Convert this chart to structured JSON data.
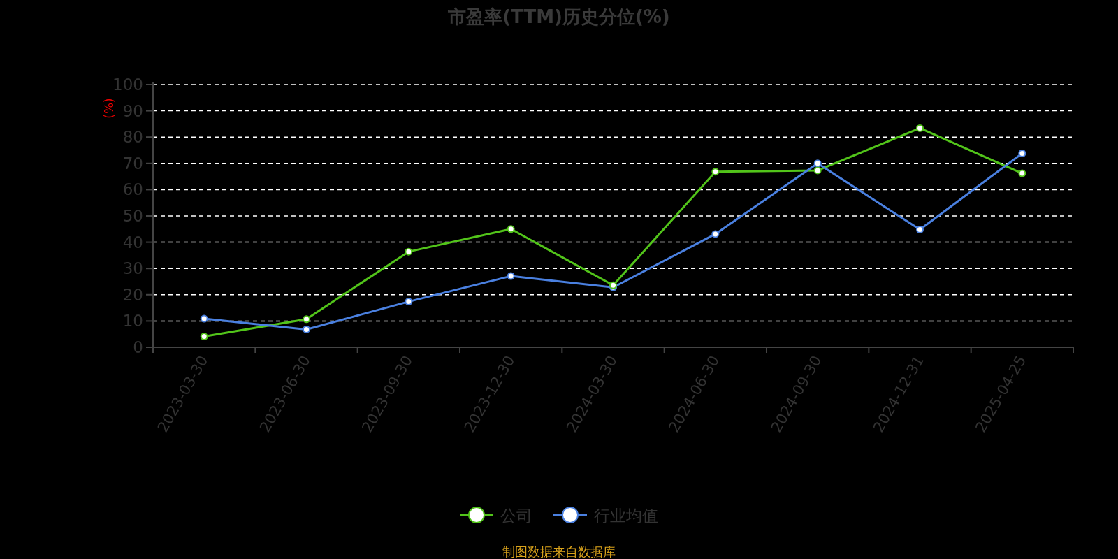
{
  "chart_data": {
    "type": "line",
    "title": "市盈率(TTM)历史分位(%)",
    "ylabel": "(%)",
    "categories": [
      "2023-03-30",
      "2023-06-30",
      "2023-09-30",
      "2023-12-30",
      "2024-03-30",
      "2024-06-30",
      "2024-09-30",
      "2024-12-31",
      "2025-04-25"
    ],
    "series": [
      {
        "name": "公司",
        "color": "#52c41a",
        "values": [
          4.1,
          10.7,
          36.4,
          45.0,
          23.6,
          66.8,
          67.3,
          83.4,
          66.2
        ]
      },
      {
        "name": "行业均值",
        "color": "#4a80e0",
        "values": [
          10.9,
          6.8,
          17.4,
          27.1,
          22.8,
          43.1,
          70.0,
          44.8,
          73.8
        ]
      }
    ],
    "ylim": [
      0,
      100
    ],
    "yticks": [
      0,
      10,
      20,
      30,
      40,
      50,
      60,
      70,
      80,
      90,
      100
    ],
    "grid": "y",
    "legend": "bottom",
    "marker": "circle",
    "line_style": "solid",
    "annotations": [
      "制图数据来自数据库"
    ]
  }
}
